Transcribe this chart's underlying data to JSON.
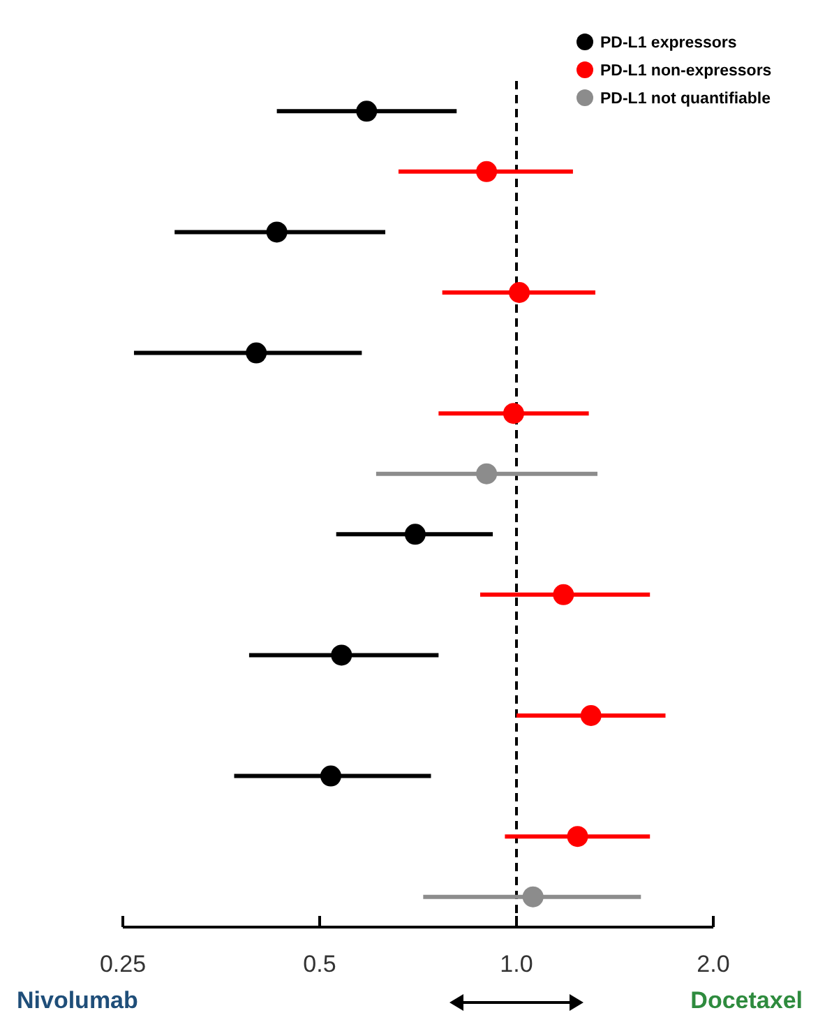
{
  "chart_data": {
    "type": "scatter",
    "orientation": "horizontal",
    "log": "x",
    "grid": false,
    "legend": "top right",
    "marker": "circle",
    "tick_labels": "x",
    "categories": [
      null,
      null,
      null,
      null,
      null,
      null,
      null,
      null,
      null,
      null,
      null,
      null,
      null,
      null
    ],
    "xlim": [
      0.25,
      2.0
    ],
    "xticks": [
      0.25,
      0.5,
      {
        "value": 1,
        "label": "1.0"
      },
      {
        "value": 2,
        "label": "2.0"
      }
    ],
    "series": [
      {
        "name": "PD-L1 expressors",
        "color": "#000000",
        "values": [
          0.59,
          null,
          0.43,
          null,
          0.4,
          null,
          null,
          0.7,
          null,
          0.54,
          null,
          0.52,
          null,
          null
        ],
        "errors": [
          [
            0.43,
            0.81
          ],
          null,
          [
            0.3,
            0.63
          ],
          null,
          [
            0.26,
            0.58
          ],
          null,
          null,
          [
            0.53,
            0.92
          ],
          null,
          [
            0.39,
            0.76
          ],
          null,
          [
            0.37,
            0.74
          ],
          null,
          null
        ]
      },
      {
        "name": "PD-L1 non-expressors",
        "color": "#ff0000",
        "values": [
          null,
          0.9,
          null,
          1.01,
          null,
          0.99,
          null,
          null,
          1.18,
          null,
          1.3,
          null,
          1.24,
          null
        ],
        "errors": [
          null,
          [
            0.66,
            1.22
          ],
          null,
          [
            0.77,
            1.32
          ],
          null,
          [
            0.76,
            1.29
          ],
          null,
          null,
          [
            0.88,
            1.6
          ],
          null,
          [
            1.0,
            1.69
          ],
          null,
          [
            0.96,
            1.6
          ],
          null
        ]
      },
      {
        "name": "PD-L1 not quantifiable",
        "color": "#8c8c8c",
        "values": [
          null,
          null,
          null,
          null,
          null,
          null,
          0.9,
          null,
          null,
          null,
          null,
          null,
          null,
          1.06
        ],
        "errors": [
          null,
          null,
          null,
          null,
          null,
          null,
          [
            0.61,
            1.33
          ],
          null,
          null,
          null,
          null,
          null,
          null,
          [
            0.72,
            1.55
          ]
        ]
      }
    ],
    "ref_lines": [
      {
        "axis": "x",
        "value": 1,
        "color": "#000000",
        "line_style": "dashed"
      }
    ],
    "annotations": [
      "Nivolumab",
      "Docetaxel"
    ]
  }
}
